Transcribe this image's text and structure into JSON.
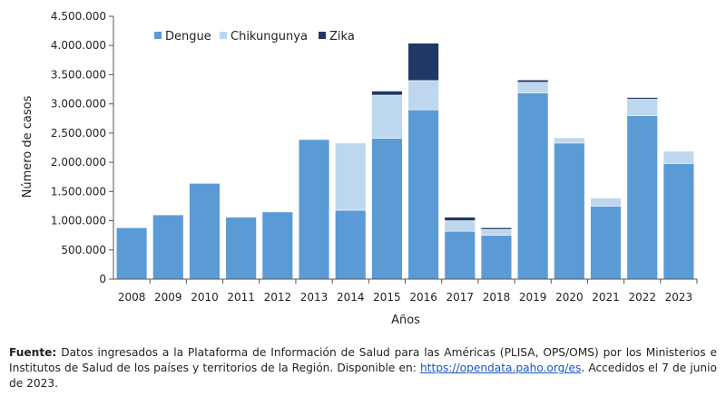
{
  "chart_data": {
    "type": "bar",
    "stacked": true,
    "categories": [
      "2008",
      "2009",
      "2010",
      "2011",
      "2012",
      "2013",
      "2014",
      "2015",
      "2016",
      "2017",
      "2018",
      "2019",
      "2020",
      "2021",
      "2022",
      "2023"
    ],
    "series": [
      {
        "name": "Dengue",
        "color": "#5b9bd5",
        "values": [
          880000,
          1100000,
          1640000,
          1060000,
          1150000,
          2390000,
          1180000,
          2410000,
          2900000,
          820000,
          750000,
          3190000,
          2330000,
          1250000,
          2800000,
          1980000
        ]
      },
      {
        "name": "Chikungunya",
        "color": "#bdd7ee",
        "values": [
          0,
          0,
          0,
          0,
          0,
          0,
          1150000,
          740000,
          500000,
          180000,
          100000,
          180000,
          90000,
          140000,
          280000,
          210000
        ]
      },
      {
        "name": "Zika",
        "color": "#1f3864",
        "values": [
          0,
          0,
          0,
          0,
          0,
          0,
          0,
          70000,
          640000,
          60000,
          30000,
          40000,
          0,
          0,
          30000,
          0
        ]
      }
    ],
    "ylabel": "Número de casos",
    "xlabel": "Años",
    "ylim": [
      0,
      4500000
    ],
    "yticks": [
      "0",
      "500.000",
      "1.000.000",
      "1.500.000",
      "2.000.000",
      "2.500.000",
      "3.000.000",
      "3.500.000",
      "4.000.000",
      "4.500.000"
    ],
    "grid": false,
    "legend_position": "top-left"
  },
  "source": {
    "label": "Fuente:",
    "text": " Datos ingresados a la Plataforma de Información de Salud para las Américas (PLISA, OPS/OMS) por los Ministerios e Institutos de Salud de los países y territorios de la Región. Disponible en: ",
    "link": "https://opendata.paho.org/es",
    "suffix": ". Accedidos el 7 de junio de 2023."
  }
}
